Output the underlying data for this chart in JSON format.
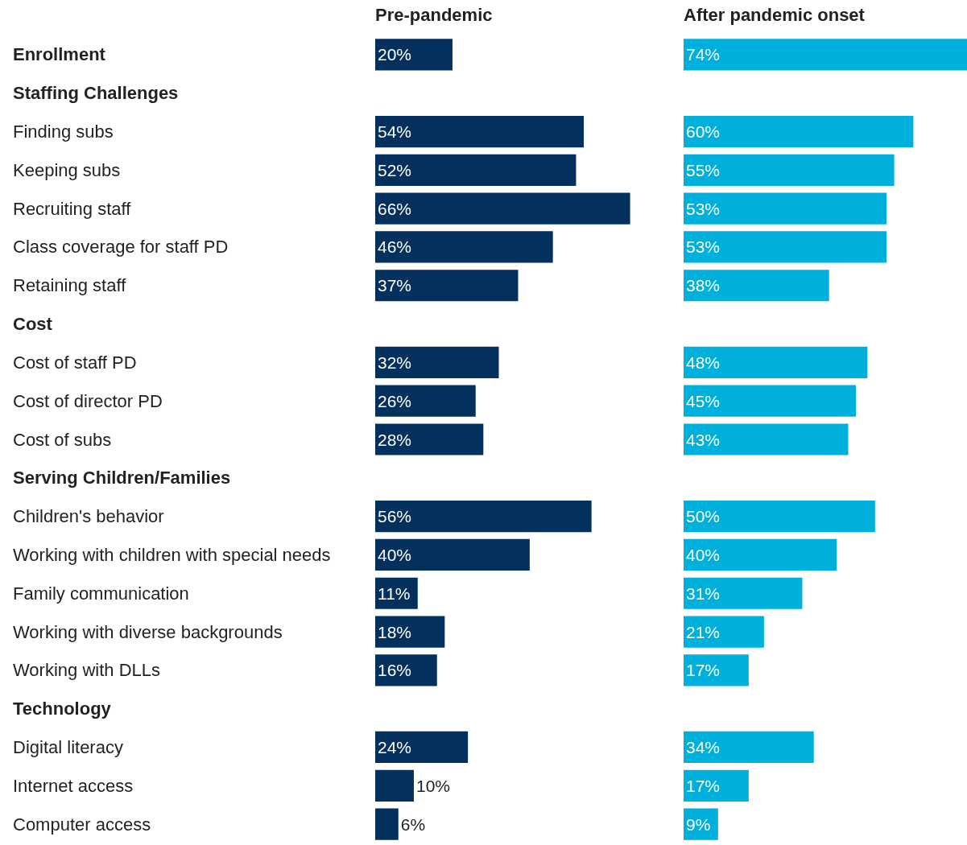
{
  "chart_data": [
    {
      "type": "bar",
      "orientation": "horizontal",
      "title": "Pre-pandemic",
      "categories": [
        "Enrollment",
        "Staffing Challenges",
        "Finding subs",
        "Keeping subs",
        "Recruiting staff",
        "Class coverage for staff PD",
        "Retaining staff",
        "Cost",
        "Cost of staff PD",
        "Cost of director PD",
        "Cost of subs",
        "Serving Children/Families",
        "Children's behavior",
        "Working with children with special needs",
        "Family communication",
        "Working with diverse backgrounds",
        "Working with DLLs",
        "Technology",
        "Digital literacy",
        "Internet access",
        "Computer access"
      ],
      "values": [
        20,
        null,
        54,
        52,
        66,
        46,
        37,
        null,
        32,
        26,
        28,
        null,
        56,
        40,
        11,
        18,
        16,
        null,
        24,
        10,
        6
      ],
      "value_labels": [
        "20%",
        null,
        "54%",
        "52%",
        "66%",
        "46%",
        "37%",
        null,
        "32%",
        "26%",
        "28%",
        null,
        "56%",
        "40%",
        "11%",
        "18%",
        "16%",
        null,
        "24%",
        "10%",
        "6%"
      ],
      "color": "#04305e",
      "tick_labels": "y",
      "grid": false,
      "legend": false
    },
    {
      "type": "bar",
      "orientation": "horizontal",
      "title": "After pandemic onset",
      "values": [
        74,
        null,
        60,
        55,
        53,
        53,
        38,
        null,
        48,
        45,
        43,
        null,
        50,
        40,
        31,
        21,
        17,
        null,
        34,
        17,
        9
      ],
      "value_labels": [
        "74%",
        null,
        "60%",
        "55%",
        "53%",
        "53%",
        "38%",
        null,
        "48%",
        "45%",
        "43%",
        null,
        "50%",
        "40%",
        "31%",
        "21%",
        "17%",
        null,
        "34%",
        "17%",
        "9%"
      ],
      "color": "#00b0dc",
      "tick_labels": false,
      "grid": false,
      "legend": false
    }
  ]
}
